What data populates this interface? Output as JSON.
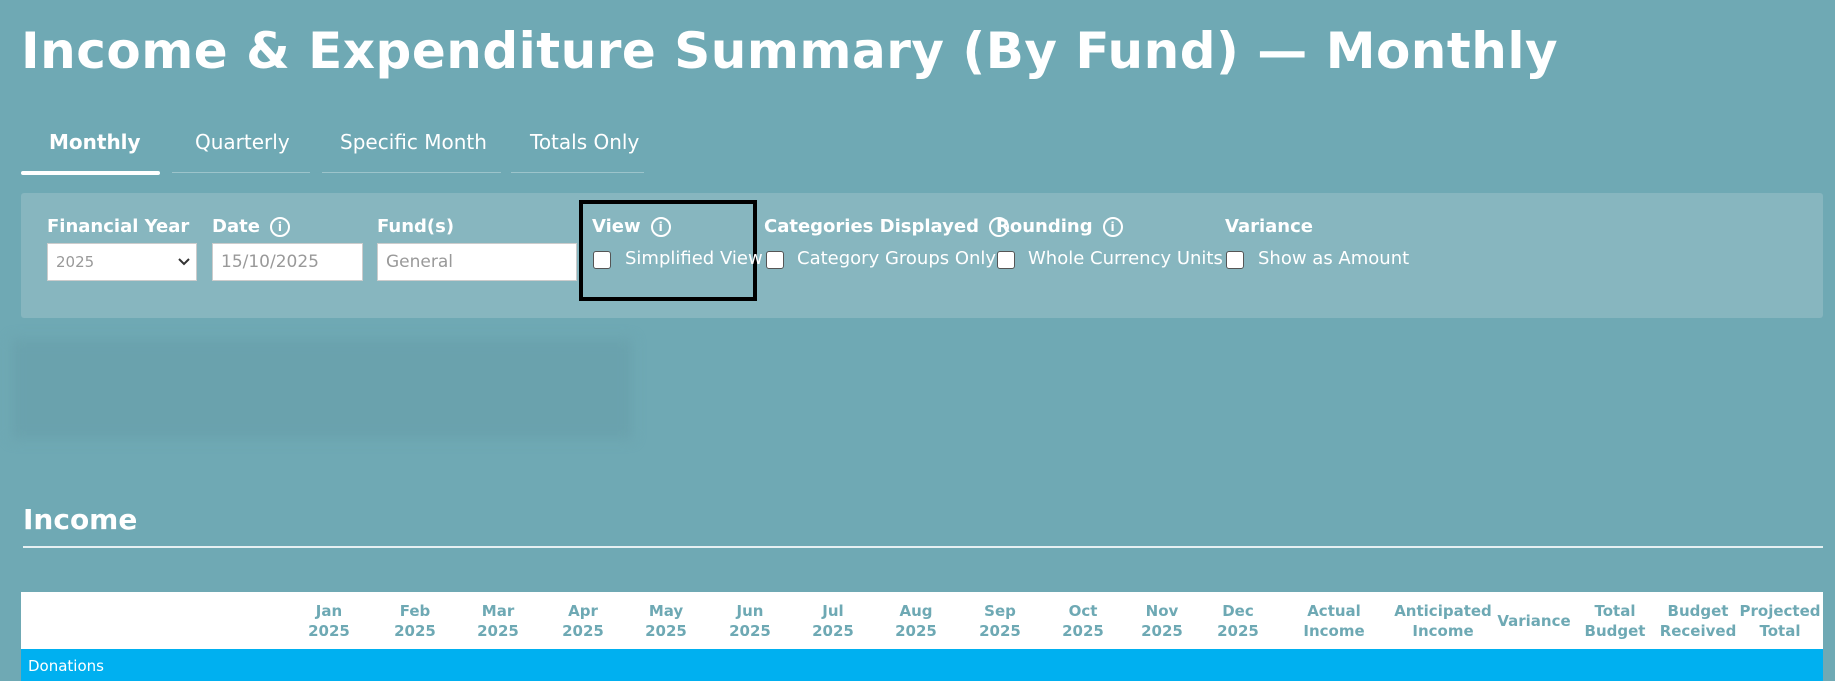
{
  "header": {
    "title": "Income & Expenditure Summary (By Fund) — Monthly"
  },
  "tabs": [
    "Monthly",
    "Quarterly",
    "Specific Month",
    "Totals Only"
  ],
  "filters": {
    "financial_year": {
      "label": "Financial Year",
      "value": "2025"
    },
    "date": {
      "label": "Date",
      "value": "15/10/2025"
    },
    "funds": {
      "label": "Fund(s)",
      "value": "General"
    },
    "view": {
      "label": "View",
      "option": "Simplified View"
    },
    "categories": {
      "label": "Categories Displayed",
      "option": "Category Groups Only"
    },
    "rounding": {
      "label": "Rounding",
      "option": "Whole Currency Units"
    },
    "variance": {
      "label": "Variance",
      "option": "Show as Amount"
    }
  },
  "section": {
    "title": "Income"
  },
  "table": {
    "columns": [
      [
        "Jan",
        "2025"
      ],
      [
        "Feb",
        "2025"
      ],
      [
        "Mar",
        "2025"
      ],
      [
        "Apr",
        "2025"
      ],
      [
        "May",
        "2025"
      ],
      [
        "Jun",
        "2025"
      ],
      [
        "Jul",
        "2025"
      ],
      [
        "Aug",
        "2025"
      ],
      [
        "Sep",
        "2025"
      ],
      [
        "Oct",
        "2025"
      ],
      [
        "Nov",
        "2025"
      ],
      [
        "Dec",
        "2025"
      ],
      [
        "Actual",
        "Income"
      ],
      [
        "Anticipated",
        "Income"
      ],
      [
        "Variance"
      ],
      [
        "Total",
        "Budget"
      ],
      [
        "Budget",
        "Received"
      ],
      [
        "Projected",
        "Total"
      ]
    ],
    "rows": [
      "Donations"
    ]
  }
}
